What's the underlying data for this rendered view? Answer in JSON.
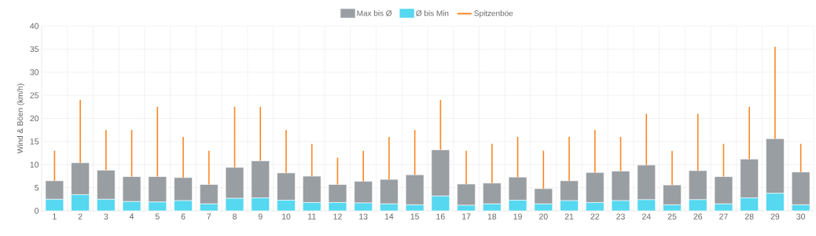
{
  "chart_data": {
    "type": "bar",
    "stacked": true,
    "ylabel": "Wind & Böen (km/h)",
    "categories": [
      "1",
      "2",
      "3",
      "4",
      "5",
      "6",
      "7",
      "8",
      "9",
      "10",
      "11",
      "12",
      "13",
      "14",
      "15",
      "16",
      "17",
      "18",
      "19",
      "20",
      "21",
      "22",
      "23",
      "24",
      "25",
      "26",
      "27",
      "28",
      "29",
      "30"
    ],
    "series": [
      {
        "name": "Ø bis Min",
        "color": "#55d8f0",
        "values": [
          2.5,
          3.5,
          2.5,
          2.0,
          1.9,
          2.2,
          1.5,
          2.7,
          2.8,
          2.3,
          1.8,
          1.8,
          1.7,
          1.5,
          1.3,
          3.2,
          1.2,
          1.5,
          2.3,
          1.5,
          2.2,
          1.8,
          2.2,
          2.4,
          1.3,
          2.4,
          1.5,
          2.8,
          3.8,
          1.3
        ]
      },
      {
        "name": "Max bis Ø",
        "color": "#999ea3",
        "values": [
          4.0,
          6.9,
          6.3,
          5.4,
          5.5,
          5.0,
          4.2,
          6.7,
          8.0,
          5.9,
          5.7,
          3.9,
          4.7,
          5.3,
          6.5,
          10.0,
          4.6,
          4.5,
          5.0,
          3.3,
          4.3,
          6.5,
          6.4,
          7.5,
          4.3,
          6.3,
          5.9,
          8.4,
          11.8,
          7.1
        ]
      },
      {
        "name": "Spitzenböe",
        "color": "#fd8523",
        "type": "bar",
        "base": [
          6.5,
          10.4,
          8.8,
          7.4,
          7.4,
          7.2,
          5.7,
          9.4,
          10.8,
          8.2,
          7.5,
          5.7,
          6.4,
          6.8,
          7.8,
          13.2,
          5.8,
          6.0,
          7.3,
          4.8,
          6.5,
          8.3,
          8.6,
          9.9,
          5.6,
          8.7,
          7.4,
          11.2,
          15.6,
          8.4
        ],
        "values": [
          6.5,
          13.6,
          8.7,
          10.1,
          15.1,
          8.8,
          7.3,
          13.1,
          11.7,
          9.3,
          7.0,
          5.8,
          6.6,
          9.2,
          9.7,
          10.8,
          7.2,
          8.5,
          8.7,
          8.2,
          9.5,
          9.2,
          7.4,
          11.1,
          7.4,
          12.3,
          7.1,
          11.3,
          19.9,
          6.1
        ]
      }
    ],
    "ylim": [
      0,
      40
    ],
    "yticks": [
      0,
      5,
      10,
      15,
      20,
      25,
      30,
      35,
      40
    ],
    "grid": true,
    "legend": "top"
  }
}
